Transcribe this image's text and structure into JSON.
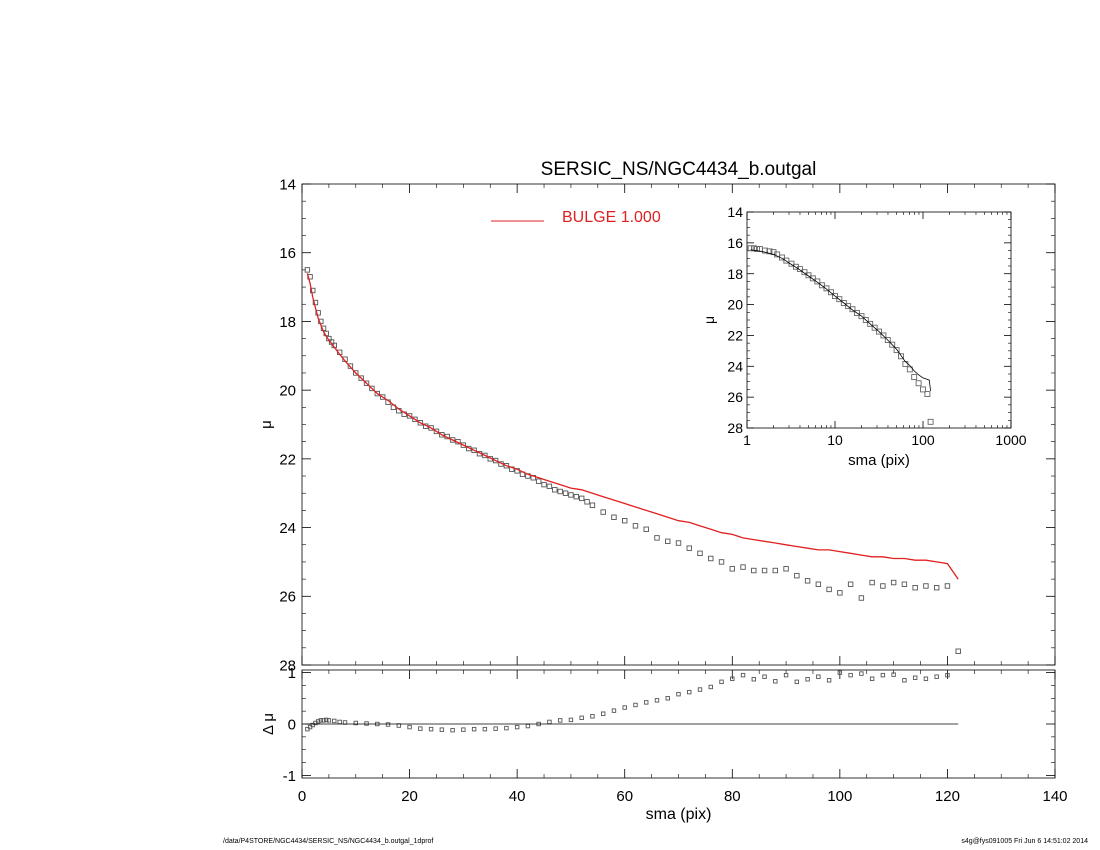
{
  "chart_data": [
    {
      "panel": "main profile",
      "type": "scatter",
      "title": "SERSIC_NS/NGC4434_b.outgal",
      "xlabel": "",
      "ylabel": "μ",
      "xlim": [
        0,
        140
      ],
      "ylim": [
        28,
        14
      ],
      "y_inverted": true,
      "x_ticks": [
        0,
        20,
        40,
        60,
        80,
        100,
        120,
        140
      ],
      "x_tick_labels": [
        "",
        "",
        "",
        "",
        "",
        "",
        "",
        ""
      ],
      "y_ticks": [
        14,
        16,
        18,
        20,
        22,
        24,
        26,
        28
      ],
      "y_tick_labels": [
        "14",
        "16",
        "18",
        "20",
        "22",
        "24",
        "26",
        "28"
      ],
      "legend": {
        "placement": "top-center",
        "entries": [
          {
            "label": "BULGE  1.000",
            "color": "#e02020"
          }
        ]
      },
      "series": [
        {
          "name": "data",
          "kind": "points",
          "marker": "square",
          "color": "#555555",
          "x": [
            1.0,
            1.5,
            2.0,
            2.5,
            3.0,
            3.5,
            4.0,
            4.5,
            5.0,
            5.5,
            6.0,
            7.0,
            8.0,
            9.0,
            10.0,
            11.0,
            12.0,
            13.0,
            14.0,
            15.0,
            16.0,
            17.0,
            18.0,
            19.0,
            20.0,
            21.0,
            22.0,
            23.0,
            24.0,
            25.0,
            26.0,
            27.0,
            28.0,
            29.0,
            30.0,
            31.0,
            32.0,
            33.0,
            34.0,
            35.0,
            36.0,
            37.0,
            38.0,
            39.0,
            40.0,
            41.0,
            42.0,
            43.0,
            44.0,
            45.0,
            46.0,
            47.0,
            48.0,
            49.0,
            50.0,
            51.0,
            52.0,
            53.0,
            54.0,
            56.0,
            58.0,
            60.0,
            62.0,
            64.0,
            66.0,
            68.0,
            70.0,
            72.0,
            74.0,
            76.0,
            78.0,
            80.0,
            82.0,
            84.0,
            86.0,
            88.0,
            90.0,
            92.0,
            94.0,
            96.0,
            98.0,
            100.0,
            102.0,
            104.0,
            106.0,
            108.0,
            110.0,
            112.0,
            114.0,
            116.0,
            118.0,
            120.0,
            122.0
          ],
          "y": [
            16.5,
            16.7,
            17.1,
            17.45,
            17.75,
            18.0,
            18.2,
            18.35,
            18.5,
            18.6,
            18.7,
            18.9,
            19.1,
            19.3,
            19.5,
            19.65,
            19.8,
            19.95,
            20.1,
            20.2,
            20.35,
            20.5,
            20.6,
            20.7,
            20.75,
            20.85,
            20.95,
            21.05,
            21.1,
            21.2,
            21.3,
            21.35,
            21.45,
            21.5,
            21.6,
            21.7,
            21.75,
            21.85,
            21.9,
            22.0,
            22.05,
            22.15,
            22.2,
            22.3,
            22.35,
            22.45,
            22.5,
            22.55,
            22.65,
            22.75,
            22.8,
            22.9,
            22.95,
            23.0,
            23.05,
            23.1,
            23.15,
            23.25,
            23.35,
            23.55,
            23.7,
            23.8,
            23.95,
            24.05,
            24.3,
            24.4,
            24.45,
            24.6,
            24.75,
            24.9,
            25.0,
            25.2,
            25.15,
            25.25,
            25.25,
            25.25,
            25.2,
            25.4,
            25.55,
            25.65,
            25.8,
            25.9,
            25.65,
            26.05,
            25.6,
            25.7,
            25.6,
            25.65,
            25.75,
            25.7,
            25.75,
            25.7,
            27.6
          ]
        },
        {
          "name": "BULGE  1.000",
          "kind": "line",
          "color": "#e02020",
          "x": [
            1.0,
            1.5,
            2.0,
            2.5,
            3.0,
            3.5,
            4.0,
            5.0,
            6.0,
            7.0,
            8.0,
            10.0,
            12.0,
            14.0,
            16.0,
            18.0,
            20.0,
            22.0,
            24.0,
            26.0,
            28.0,
            30.0,
            32.0,
            34.0,
            36.0,
            38.0,
            40.0,
            42.0,
            44.0,
            46.0,
            48.0,
            50.0,
            52.0,
            54.0,
            56.0,
            58.0,
            60.0,
            62.0,
            64.0,
            66.0,
            68.0,
            70.0,
            72.0,
            74.0,
            76.0,
            78.0,
            80.0,
            82.0,
            84.0,
            86.0,
            88.0,
            90.0,
            92.0,
            94.0,
            96.0,
            98.0,
            100.0,
            102.0,
            104.0,
            106.0,
            108.0,
            110.0,
            112.0,
            114.0,
            116.0,
            118.0,
            120.0,
            122.0
          ],
          "y": [
            16.6,
            16.9,
            17.3,
            17.6,
            17.9,
            18.1,
            18.3,
            18.55,
            18.75,
            18.95,
            19.15,
            19.5,
            19.8,
            20.1,
            20.3,
            20.55,
            20.75,
            20.95,
            21.1,
            21.3,
            21.45,
            21.6,
            21.75,
            21.9,
            22.05,
            22.2,
            22.3,
            22.45,
            22.55,
            22.65,
            22.75,
            22.85,
            22.9,
            23.0,
            23.1,
            23.2,
            23.3,
            23.4,
            23.5,
            23.6,
            23.7,
            23.8,
            23.85,
            23.95,
            24.05,
            24.15,
            24.2,
            24.3,
            24.35,
            24.4,
            24.45,
            24.5,
            24.55,
            24.6,
            24.65,
            24.65,
            24.7,
            24.75,
            24.8,
            24.85,
            24.85,
            24.9,
            24.9,
            24.95,
            24.95,
            25.0,
            25.05,
            25.5
          ]
        }
      ]
    },
    {
      "panel": "residuals",
      "type": "scatter",
      "xlabel": "sma (pix)",
      "ylabel": "Δ μ",
      "xlim": [
        0,
        140
      ],
      "ylim": [
        -1.05,
        1.05
      ],
      "x_ticks": [
        0,
        20,
        40,
        60,
        80,
        100,
        120,
        140
      ],
      "x_tick_labels": [
        "0",
        "20",
        "40",
        "60",
        "80",
        "100",
        "120",
        "140"
      ],
      "y_ticks": [
        -1,
        0,
        1
      ],
      "y_tick_labels": [
        "-1",
        "0",
        "1"
      ],
      "series": [
        {
          "name": "residual",
          "kind": "points",
          "marker": "square",
          "color": "#555555",
          "x": [
            1.0,
            1.5,
            2.0,
            2.5,
            3.0,
            3.5,
            4.0,
            4.5,
            5.0,
            6.0,
            7.0,
            8.0,
            10.0,
            12.0,
            14.0,
            16.0,
            18.0,
            20.0,
            22.0,
            24.0,
            26.0,
            28.0,
            30.0,
            32.0,
            34.0,
            36.0,
            38.0,
            40.0,
            42.0,
            44.0,
            46.0,
            48.0,
            50.0,
            52.0,
            54.0,
            56.0,
            58.0,
            60.0,
            62.0,
            64.0,
            66.0,
            68.0,
            70.0,
            72.0,
            74.0,
            76.0,
            78.0,
            80.0,
            82.0,
            84.0,
            86.0,
            88.0,
            90.0,
            92.0,
            94.0,
            96.0,
            98.0,
            100.0,
            102.0,
            104.0,
            106.0,
            108.0,
            110.0,
            112.0,
            114.0,
            116.0,
            118.0,
            120.0
          ],
          "y": [
            -0.1,
            -0.06,
            -0.02,
            0.02,
            0.05,
            0.07,
            0.07,
            0.08,
            0.07,
            0.06,
            0.04,
            0.03,
            0.02,
            0.01,
            0.0,
            -0.01,
            -0.03,
            -0.06,
            -0.09,
            -0.1,
            -0.11,
            -0.12,
            -0.11,
            -0.1,
            -0.1,
            -0.09,
            -0.08,
            -0.06,
            -0.04,
            0.0,
            0.04,
            0.07,
            0.08,
            0.12,
            0.15,
            0.2,
            0.26,
            0.32,
            0.37,
            0.42,
            0.46,
            0.5,
            0.58,
            0.62,
            0.67,
            0.72,
            0.82,
            0.88,
            0.95,
            0.87,
            0.92,
            0.83,
            0.95,
            0.82,
            0.87,
            0.92,
            0.85,
            1.0,
            0.95,
            0.98,
            0.88,
            0.95,
            0.96,
            0.85,
            0.9,
            0.88,
            0.92,
            0.95
          ]
        },
        {
          "name": "zero",
          "kind": "line",
          "color": "#000000",
          "x": [
            0.5,
            122.0
          ],
          "y": [
            0,
            0
          ]
        }
      ]
    },
    {
      "panel": "inset log profile",
      "type": "scatter",
      "xlabel": "sma (pix)",
      "ylabel": "μ",
      "x_scale": "log",
      "xlim": [
        1,
        1000
      ],
      "ylim": [
        28,
        14
      ],
      "y_inverted": true,
      "x_ticks": [
        1,
        10,
        100,
        1000
      ],
      "x_tick_labels": [
        "1",
        "10",
        "100",
        "1000"
      ],
      "y_ticks": [
        14,
        16,
        18,
        20,
        22,
        24,
        26,
        28
      ],
      "y_tick_labels": [
        "14",
        "16",
        "18",
        "20",
        "22",
        "24",
        "26",
        "28"
      ],
      "series": [
        {
          "name": "data",
          "kind": "points",
          "marker": "square",
          "color": "#666666",
          "x": [
            1.1,
            1.2,
            1.3,
            1.4,
            1.6,
            1.8,
            2.0,
            2.2,
            2.5,
            2.8,
            3.2,
            3.6,
            4.0,
            4.5,
            5.0,
            5.6,
            6.3,
            7.1,
            8.0,
            9.0,
            10.0,
            11.2,
            12.6,
            14.1,
            15.8,
            17.8,
            20.0,
            22.4,
            25.1,
            28.2,
            31.6,
            35.5,
            39.8,
            44.7,
            50.1,
            56.2,
            63.1,
            70.8,
            79.4,
            89.1,
            100.0,
            112.2,
            122.0
          ],
          "y": [
            16.35,
            16.35,
            16.4,
            16.4,
            16.5,
            16.55,
            16.6,
            16.75,
            16.95,
            17.15,
            17.35,
            17.55,
            17.7,
            17.9,
            18.1,
            18.3,
            18.5,
            18.75,
            18.95,
            19.2,
            19.45,
            19.65,
            19.9,
            20.1,
            20.3,
            20.55,
            20.75,
            21.0,
            21.25,
            21.5,
            21.75,
            22.0,
            22.3,
            22.6,
            22.95,
            23.35,
            23.85,
            24.2,
            24.7,
            25.1,
            25.5,
            25.8,
            27.6
          ]
        },
        {
          "name": "model",
          "kind": "line",
          "color": "#000000",
          "x": [
            1.1,
            1.3,
            1.6,
            2.0,
            2.5,
            3.2,
            4.0,
            5.0,
            6.3,
            8.0,
            10.0,
            12.6,
            15.8,
            20.0,
            25.1,
            31.6,
            39.8,
            50.1,
            63.1,
            70.8,
            79.4,
            89.1,
            100.0,
            112.2,
            118.0,
            122.0
          ],
          "y": [
            16.45,
            16.5,
            16.6,
            16.75,
            17.0,
            17.4,
            17.75,
            18.15,
            18.55,
            19.0,
            19.45,
            19.9,
            20.35,
            20.75,
            21.25,
            21.75,
            22.3,
            22.9,
            23.7,
            23.95,
            24.3,
            24.55,
            24.75,
            24.85,
            24.9,
            25.6
          ]
        }
      ]
    }
  ],
  "footer": {
    "left": "/data/P4STORE/NGC4434/SERSIC_NS/NGC4434_b.outgal_1dprof",
    "right": "s4g@fys091005  Fri Jun  6 14:51:02 2014"
  }
}
